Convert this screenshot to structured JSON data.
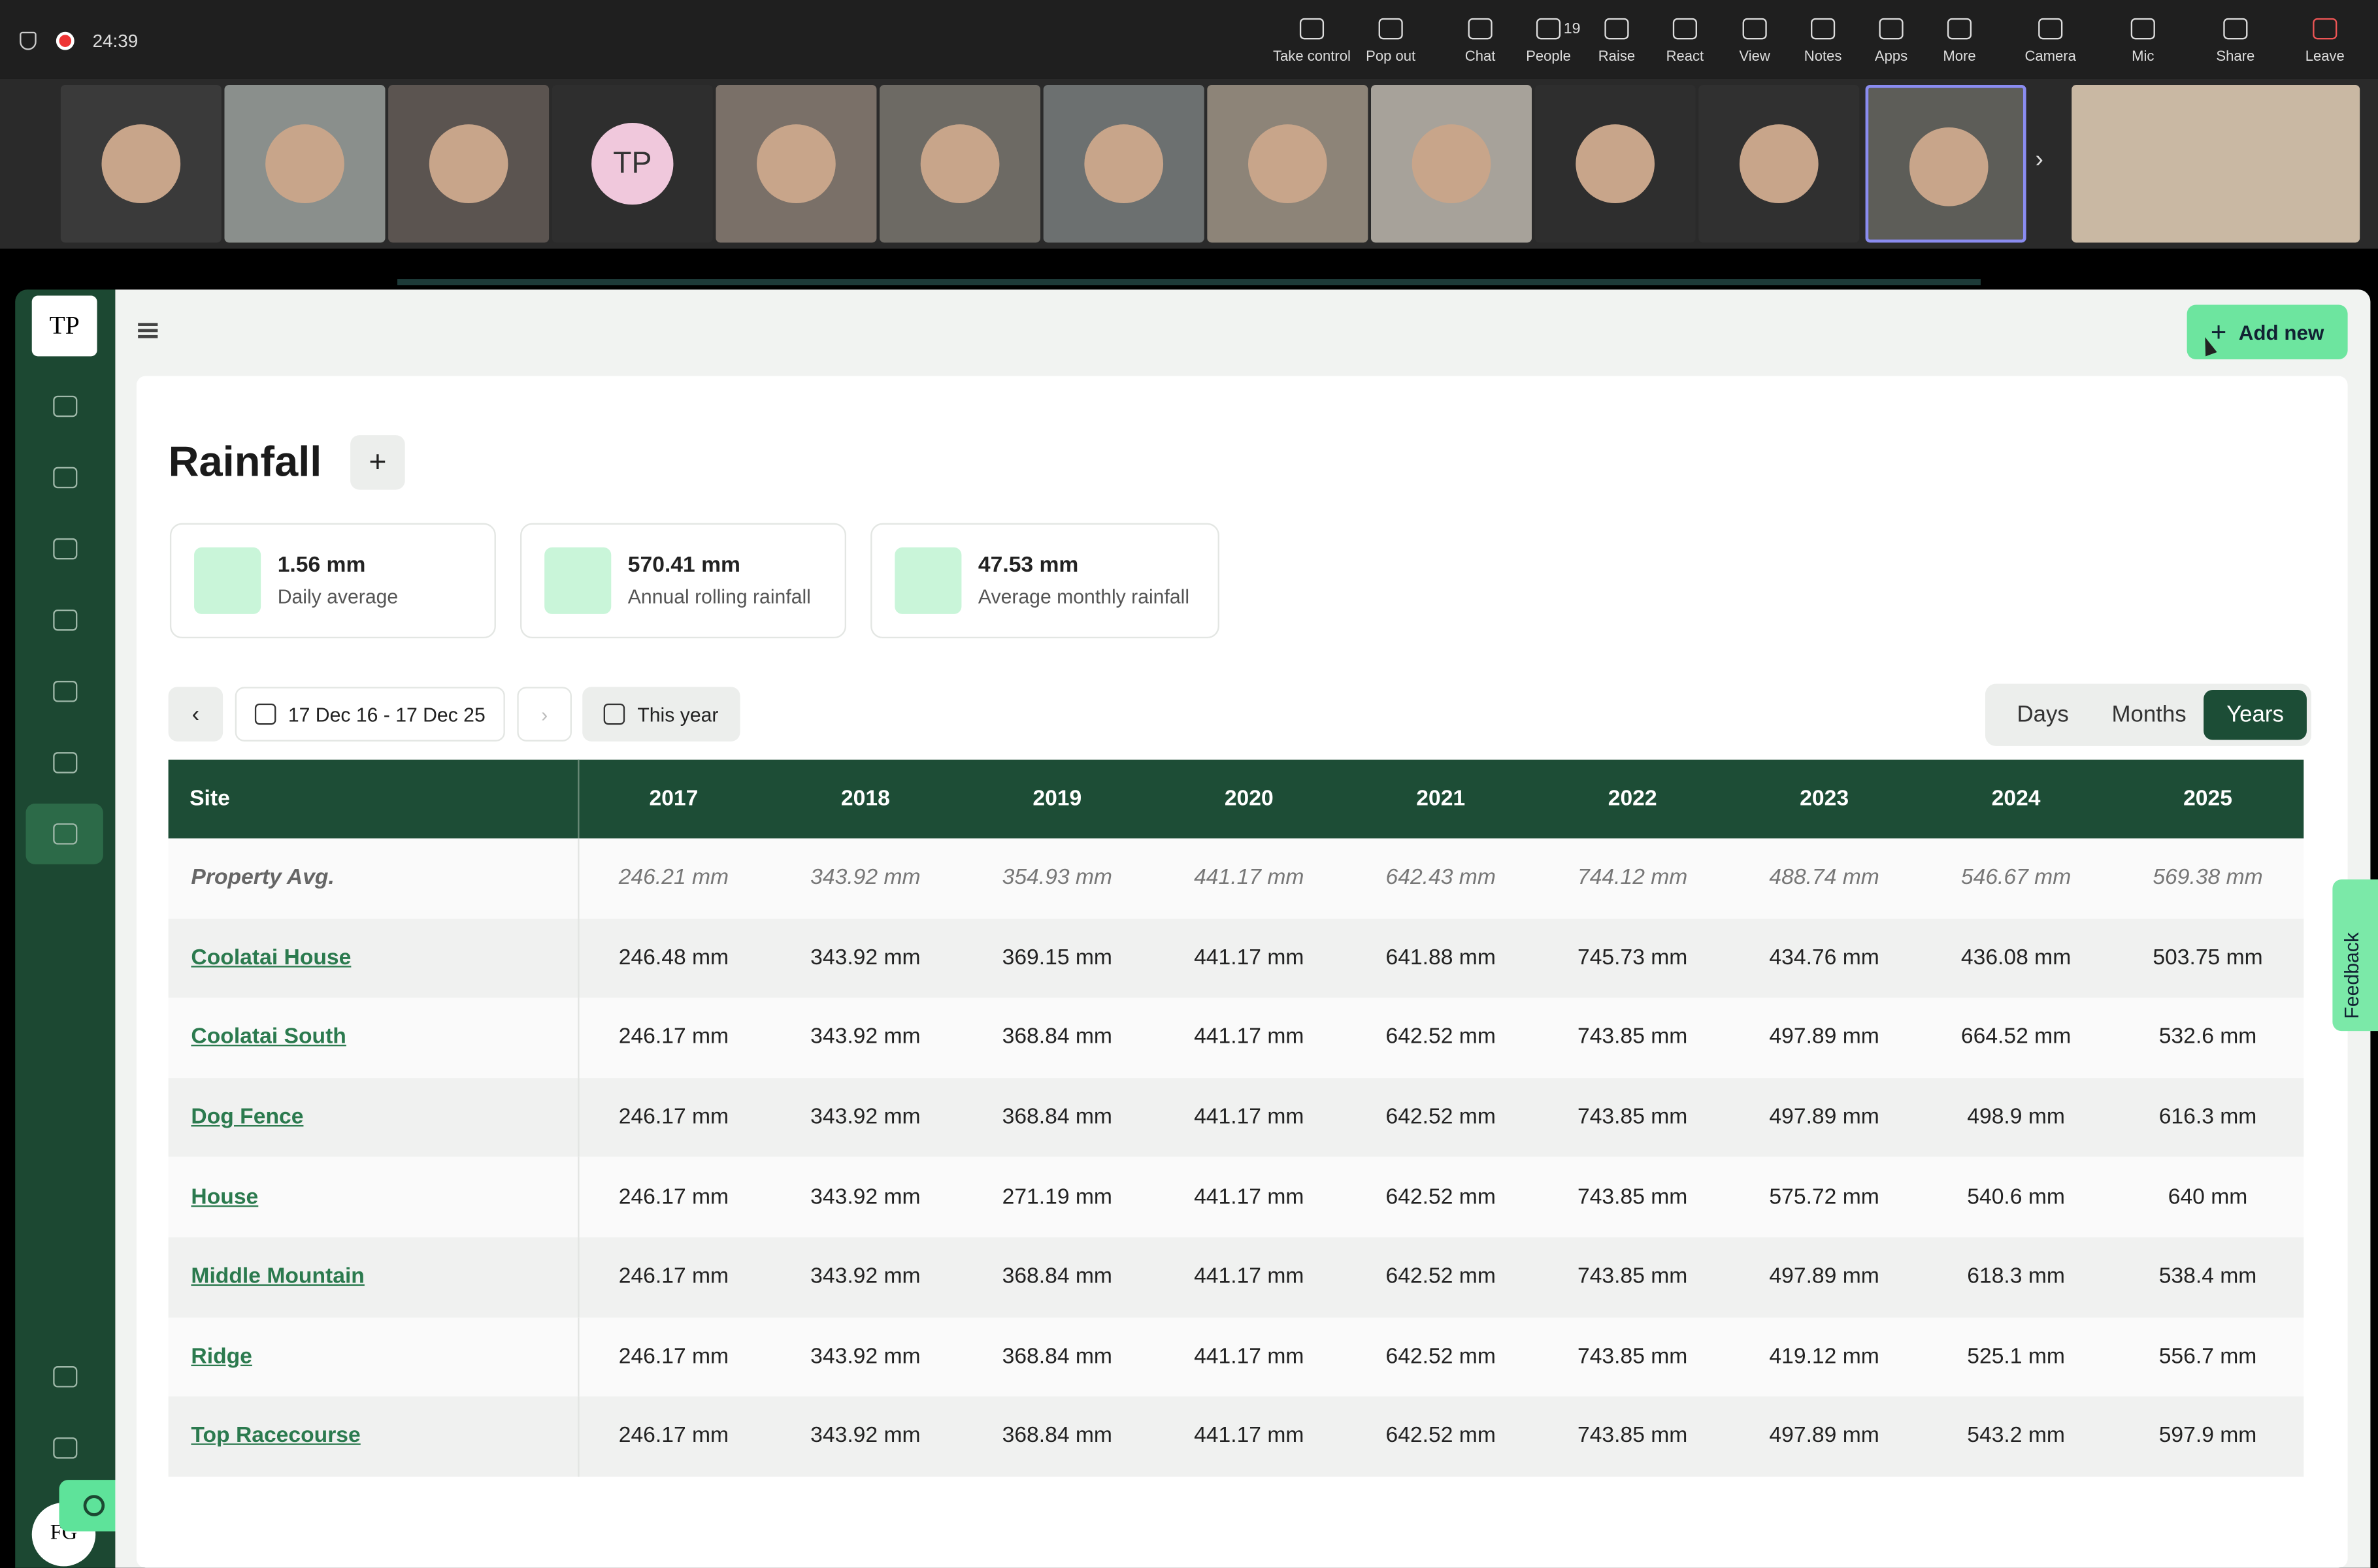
{
  "meeting": {
    "timer": "24:39",
    "participant_initials": "TP",
    "toolbar": [
      {
        "label": "Take control"
      },
      {
        "label": "Pop out"
      },
      {
        "label": "Chat"
      },
      {
        "label": "People",
        "badge": "19"
      },
      {
        "label": "Raise"
      },
      {
        "label": "React"
      },
      {
        "label": "View"
      },
      {
        "label": "Notes"
      },
      {
        "label": "Apps"
      },
      {
        "label": "More"
      },
      {
        "label": "Camera"
      },
      {
        "label": "Mic"
      },
      {
        "label": "Share"
      },
      {
        "label": "Leave"
      }
    ]
  },
  "app": {
    "logo": "TP",
    "add_button": "Add new",
    "title": "Rainfall",
    "stats": [
      {
        "value": "1.56 mm",
        "label": "Daily average"
      },
      {
        "value": "570.41 mm",
        "label": "Annual rolling rainfall"
      },
      {
        "value": "47.53 mm",
        "label": "Average monthly rainfall"
      }
    ],
    "date_range": "17 Dec 16 - 17 Dec 25",
    "preset": "This year",
    "view_toggle": [
      "Days",
      "Months",
      "Years"
    ],
    "feedback": "Feedback",
    "user_initials": "FG",
    "table": {
      "header": [
        "Site",
        "2017",
        "2018",
        "2019",
        "2020",
        "2021",
        "2022",
        "2023",
        "2024",
        "2025"
      ],
      "rows": [
        [
          "Property Avg.",
          "246.21 mm",
          "343.92 mm",
          "354.93 mm",
          "441.17 mm",
          "642.43 mm",
          "744.12 mm",
          "488.74 mm",
          "546.67 mm",
          "569.38 mm"
        ],
        [
          "Coolatai House",
          "246.48 mm",
          "343.92 mm",
          "369.15 mm",
          "441.17 mm",
          "641.88 mm",
          "745.73 mm",
          "434.76 mm",
          "436.08 mm",
          "503.75 mm"
        ],
        [
          "Coolatai South",
          "246.17 mm",
          "343.92 mm",
          "368.84 mm",
          "441.17 mm",
          "642.52 mm",
          "743.85 mm",
          "497.89 mm",
          "664.52 mm",
          "532.6 mm"
        ],
        [
          "Dog Fence",
          "246.17 mm",
          "343.92 mm",
          "368.84 mm",
          "441.17 mm",
          "642.52 mm",
          "743.85 mm",
          "497.89 mm",
          "498.9 mm",
          "616.3 mm"
        ],
        [
          "House",
          "246.17 mm",
          "343.92 mm",
          "271.19 mm",
          "441.17 mm",
          "642.52 mm",
          "743.85 mm",
          "575.72 mm",
          "540.6 mm",
          "640 mm"
        ],
        [
          "Middle Mountain",
          "246.17 mm",
          "343.92 mm",
          "368.84 mm",
          "441.17 mm",
          "642.52 mm",
          "743.85 mm",
          "497.89 mm",
          "618.3 mm",
          "538.4 mm"
        ],
        [
          "Ridge",
          "246.17 mm",
          "343.92 mm",
          "368.84 mm",
          "441.17 mm",
          "642.52 mm",
          "743.85 mm",
          "419.12 mm",
          "525.1 mm",
          "556.7 mm"
        ],
        [
          "Top Racecourse",
          "246.17 mm",
          "343.92 mm",
          "368.84 mm",
          "441.17 mm",
          "642.52 mm",
          "743.85 mm",
          "497.89 mm",
          "543.2 mm",
          "597.9 mm"
        ]
      ]
    }
  }
}
